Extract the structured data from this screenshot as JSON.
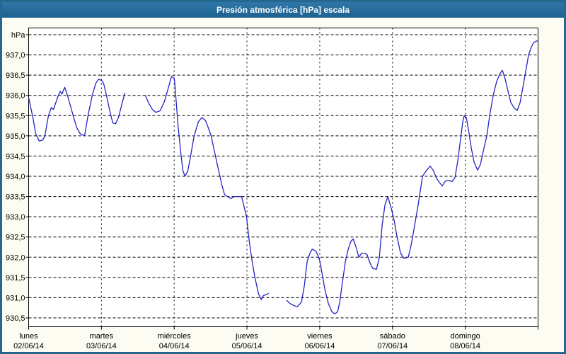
{
  "window": {
    "title": "Presión atmosférica [hPa] escala"
  },
  "colors": {
    "titlebar_top": "#2f77a8",
    "titlebar_bottom": "#1d628f",
    "titlebar_text": "#ffffff",
    "frame_border": "#25688f",
    "page_background": "#fcfcf2",
    "plot_background": "#ffffff",
    "grid": "#000000",
    "axis_text": "#000000",
    "series_line": "#2424c4"
  },
  "chart_data": {
    "type": "line",
    "title": "Presión atmosférica [hPa] escala",
    "ylabel": "hPa",
    "grid": "dashed",
    "legend": "none",
    "y_axis": {
      "min": 930.5,
      "max": 937.5,
      "step": 0.5,
      "top_unit_label": "hPa",
      "tick_labels": [
        "937,0",
        "936,5",
        "936,0",
        "935,5",
        "935,0",
        "934,5",
        "934,0",
        "933,5",
        "933,0",
        "932,5",
        "932,0",
        "931,5",
        "931,0",
        "930,5"
      ]
    },
    "x_axis": {
      "unit": "days",
      "range_days": 7,
      "day_labels": [
        {
          "name": "lunes",
          "date": "02/06/14"
        },
        {
          "name": "martes",
          "date": "03/06/14"
        },
        {
          "name": "miércoles",
          "date": "04/06/14"
        },
        {
          "name": "jueves",
          "date": "05/06/14"
        },
        {
          "name": "viernes",
          "date": "06/06/14"
        },
        {
          "name": "sábado",
          "date": "07/06/14"
        },
        {
          "name": "domingo",
          "date": "08/06/14"
        }
      ]
    },
    "series": [
      {
        "name": "Presión atmosférica [hPa]",
        "color": "#2424c4",
        "x_unit": "days since 02/06/14 00:00",
        "segments": [
          [
            [
              0.0,
              935.95
            ],
            [
              0.058,
              935.45
            ],
            [
              0.097,
              935.05
            ],
            [
              0.146,
              934.87
            ],
            [
              0.194,
              934.9
            ],
            [
              0.223,
              935.0
            ],
            [
              0.272,
              935.5
            ],
            [
              0.311,
              935.7
            ],
            [
              0.34,
              935.65
            ],
            [
              0.369,
              935.8
            ],
            [
              0.408,
              936.0
            ],
            [
              0.437,
              936.1
            ],
            [
              0.457,
              936.03
            ],
            [
              0.496,
              936.2
            ],
            [
              0.534,
              936.0
            ],
            [
              0.612,
              935.5
            ],
            [
              0.661,
              935.2
            ],
            [
              0.709,
              935.05
            ],
            [
              0.768,
              935.0
            ],
            [
              0.816,
              935.5
            ],
            [
              0.874,
              936.0
            ],
            [
              0.923,
              936.3
            ],
            [
              0.962,
              936.4
            ],
            [
              1.001,
              936.37
            ],
            [
              1.03,
              936.3
            ],
            [
              1.069,
              936.0
            ],
            [
              1.117,
              935.6
            ],
            [
              1.156,
              935.32
            ],
            [
              1.195,
              935.3
            ],
            [
              1.234,
              935.45
            ],
            [
              1.283,
              935.8
            ],
            [
              1.321,
              936.05
            ]
          ],
          [
            [
              1.603,
              936.0
            ],
            [
              1.652,
              935.8
            ],
            [
              1.7,
              935.65
            ],
            [
              1.749,
              935.58
            ],
            [
              1.807,
              935.62
            ],
            [
              1.866,
              935.85
            ],
            [
              1.914,
              936.15
            ],
            [
              1.963,
              936.47
            ],
            [
              2.002,
              936.42
            ],
            [
              2.021,
              936.0
            ],
            [
              2.05,
              935.3
            ],
            [
              2.089,
              934.6
            ],
            [
              2.118,
              934.15
            ],
            [
              2.147,
              934.0
            ],
            [
              2.186,
              934.12
            ],
            [
              2.225,
              934.5
            ],
            [
              2.274,
              935.0
            ],
            [
              2.332,
              935.35
            ],
            [
              2.38,
              935.45
            ],
            [
              2.429,
              935.38
            ],
            [
              2.468,
              935.2
            ],
            [
              2.507,
              935.0
            ],
            [
              2.555,
              934.6
            ],
            [
              2.604,
              934.2
            ],
            [
              2.653,
              933.8
            ],
            [
              2.691,
              933.55
            ],
            [
              2.73,
              933.5
            ],
            [
              2.779,
              933.45
            ],
            [
              2.827,
              933.5
            ],
            [
              2.925,
              933.5
            ],
            [
              2.954,
              933.3
            ],
            [
              2.993,
              933.0
            ],
            [
              3.031,
              932.4
            ],
            [
              3.07,
              931.9
            ],
            [
              3.109,
              931.5
            ],
            [
              3.158,
              931.1
            ],
            [
              3.197,
              930.95
            ],
            [
              3.226,
              931.05
            ],
            [
              3.294,
              931.1
            ]
          ],
          [
            [
              3.546,
              930.93
            ],
            [
              3.595,
              930.85
            ],
            [
              3.653,
              930.8
            ],
            [
              3.692,
              930.78
            ],
            [
              3.721,
              930.83
            ],
            [
              3.75,
              930.9
            ],
            [
              3.789,
              931.3
            ],
            [
              3.828,
              931.9
            ],
            [
              3.867,
              932.1
            ],
            [
              3.896,
              932.2
            ],
            [
              3.945,
              932.15
            ],
            [
              3.974,
              932.05
            ],
            [
              4.003,
              931.9
            ],
            [
              4.032,
              931.6
            ],
            [
              4.071,
              931.2
            ],
            [
              4.119,
              930.85
            ],
            [
              4.168,
              930.65
            ],
            [
              4.207,
              930.6
            ],
            [
              4.246,
              930.65
            ],
            [
              4.275,
              930.9
            ],
            [
              4.314,
              931.4
            ],
            [
              4.353,
              931.9
            ],
            [
              4.392,
              932.2
            ],
            [
              4.43,
              932.4
            ],
            [
              4.46,
              932.45
            ],
            [
              4.498,
              932.25
            ],
            [
              4.537,
              932.0
            ],
            [
              4.576,
              932.1
            ],
            [
              4.625,
              932.1
            ],
            [
              4.654,
              932.05
            ],
            [
              4.693,
              931.85
            ],
            [
              4.731,
              931.72
            ],
            [
              4.78,
              931.7
            ],
            [
              4.819,
              932.0
            ],
            [
              4.858,
              932.8
            ],
            [
              4.897,
              933.3
            ],
            [
              4.936,
              933.5
            ],
            [
              4.984,
              933.2
            ],
            [
              5.023,
              932.9
            ],
            [
              5.062,
              932.5
            ],
            [
              5.111,
              932.1
            ],
            [
              5.159,
              931.97
            ],
            [
              5.217,
              932.0
            ],
            [
              5.256,
              932.3
            ],
            [
              5.305,
              932.8
            ],
            [
              5.353,
              933.3
            ],
            [
              5.412,
              934.0
            ],
            [
              5.47,
              934.15
            ],
            [
              5.518,
              934.25
            ],
            [
              5.558,
              934.15
            ],
            [
              5.606,
              933.95
            ],
            [
              5.645,
              933.85
            ],
            [
              5.684,
              933.76
            ],
            [
              5.723,
              933.88
            ],
            [
              5.771,
              933.9
            ],
            [
              5.82,
              933.87
            ],
            [
              5.859,
              933.97
            ],
            [
              5.898,
              934.4
            ],
            [
              5.937,
              934.95
            ],
            [
              5.966,
              935.35
            ],
            [
              5.985,
              935.5
            ],
            [
              6.014,
              935.45
            ],
            [
              6.044,
              935.15
            ],
            [
              6.082,
              934.7
            ],
            [
              6.121,
              934.35
            ],
            [
              6.17,
              934.15
            ],
            [
              6.209,
              934.3
            ],
            [
              6.257,
              934.7
            ],
            [
              6.296,
              935.0
            ],
            [
              6.335,
              935.5
            ],
            [
              6.384,
              936.0
            ],
            [
              6.432,
              936.35
            ],
            [
              6.481,
              936.55
            ],
            [
              6.51,
              936.62
            ],
            [
              6.549,
              936.4
            ],
            [
              6.588,
              936.1
            ],
            [
              6.627,
              935.82
            ],
            [
              6.676,
              935.68
            ],
            [
              6.714,
              935.63
            ],
            [
              6.753,
              935.82
            ],
            [
              6.792,
              936.2
            ],
            [
              6.831,
              936.6
            ],
            [
              6.87,
              937.0
            ],
            [
              6.909,
              937.2
            ],
            [
              6.938,
              937.3
            ],
            [
              6.977,
              937.34
            ],
            [
              6.996,
              937.35
            ]
          ]
        ]
      }
    ]
  }
}
